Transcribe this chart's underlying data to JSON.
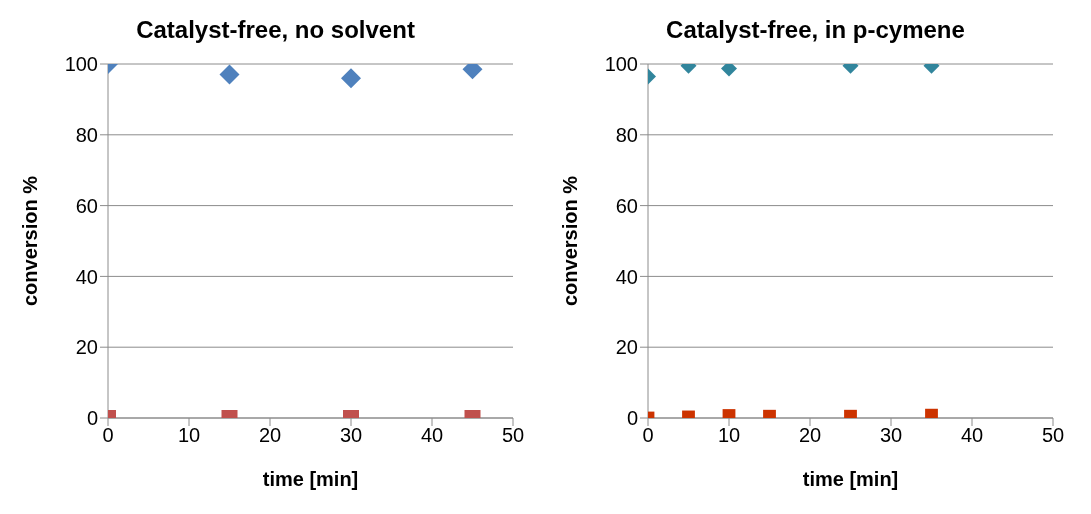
{
  "chart_data": [
    {
      "type": "scatter",
      "title": "Catalyst-free, no solvent",
      "xlabel": "time [min]",
      "ylabel": "conversion %",
      "x": [
        0,
        15,
        30,
        45
      ],
      "series": [
        {
          "color": "#4f81bd",
          "marker": "diamond",
          "values": [
            100,
            97,
            96,
            98.5
          ]
        },
        {
          "color": "#c0504d",
          "marker": "square",
          "values": [
            0,
            0,
            0,
            0
          ]
        }
      ],
      "xlim": [
        0,
        50
      ],
      "xticks": [
        0,
        10,
        20,
        30,
        40,
        50
      ],
      "ylim": [
        0,
        100
      ],
      "yticks": [
        0,
        20,
        40,
        60,
        80,
        100
      ],
      "grid": "y",
      "legend": false
    },
    {
      "type": "scatter",
      "title": "Catalyst-free, in p-cymene",
      "xlabel": "time [min]",
      "ylabel": "conversion %",
      "x": [
        0,
        5,
        10,
        15,
        25,
        35
      ],
      "series": [
        {
          "color": "#31859c",
          "marker": "diamond",
          "x": [
            0,
            5,
            10,
            25,
            35
          ],
          "values": [
            96.5,
            99.5,
            98.7,
            99.5,
            99.5
          ]
        },
        {
          "color": "#cc3300",
          "marker": "square",
          "values": [
            0,
            0.3,
            0.7,
            0.5,
            0.5,
            0.8
          ]
        }
      ],
      "xlim": [
        0,
        50
      ],
      "xticks": [
        0,
        10,
        20,
        30,
        40,
        50
      ],
      "ylim": [
        0,
        100
      ],
      "yticks": [
        0,
        20,
        40,
        60,
        80,
        100
      ],
      "grid": "y",
      "legend": false
    }
  ]
}
